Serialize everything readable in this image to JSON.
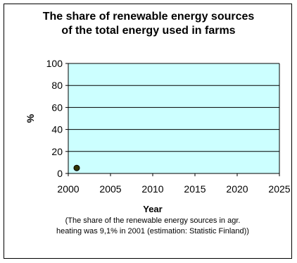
{
  "chart_data": {
    "type": "scatter",
    "title_lines": [
      "The share of renewable energy sources",
      "of the total energy used in farms"
    ],
    "xlabel": "Year",
    "ylabel": "%",
    "xlim": [
      2000,
      2025
    ],
    "ylim": [
      0,
      100
    ],
    "xticks": [
      2000,
      2005,
      2010,
      2015,
      2020,
      2025
    ],
    "yticks": [
      0,
      20,
      40,
      60,
      80,
      100
    ],
    "grid": "horizontal",
    "plot_background": "#ccffff",
    "marker_color": "#333300",
    "series": [
      {
        "x": [
          2001
        ],
        "y": [
          5
        ]
      }
    ],
    "note_lines": [
      "(The share of the renewable energy sources in agr.",
      "heating was 9,1% in 2001 (estimation: Statistic Finland))"
    ]
  }
}
